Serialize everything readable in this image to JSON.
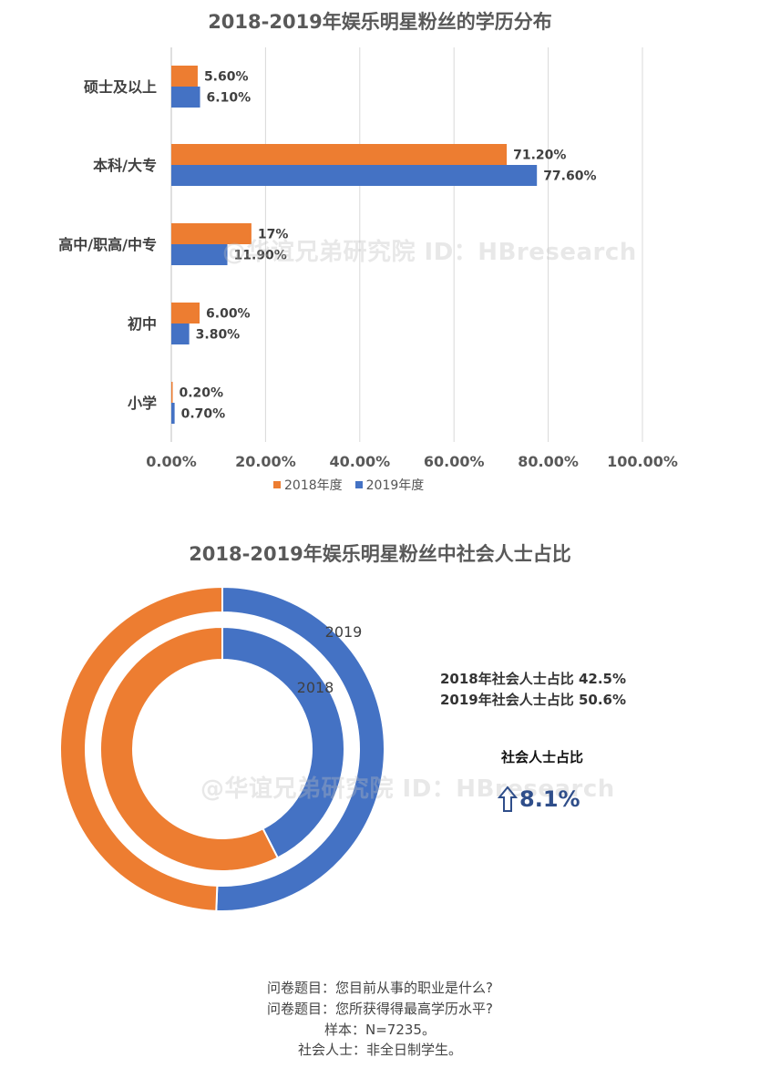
{
  "chart_data": [
    {
      "type": "bar",
      "orientation": "horizontal",
      "title": "2018-2019年娱乐明星粉丝的学历分布",
      "categories": [
        "硕士及以上",
        "本科/大专",
        "高中/职高/中专",
        "初中",
        "小学"
      ],
      "series": [
        {
          "name": "2018年度",
          "color": "#ED7D31",
          "values": [
            5.6,
            71.2,
            17,
            6.0,
            0.2
          ],
          "labels": [
            "5.60%",
            "71.20%",
            "17%",
            "6.00%",
            "0.20%"
          ]
        },
        {
          "name": "2019年度",
          "color": "#4472C4",
          "values": [
            6.1,
            77.6,
            11.9,
            3.8,
            0.7
          ],
          "labels": [
            "6.10%",
            "77.60%",
            "11.90%",
            "3.80%",
            "0.70%"
          ]
        }
      ],
      "xlim": [
        0,
        100
      ],
      "xticks": [
        0,
        20,
        40,
        60,
        80,
        100
      ],
      "xtick_labels": [
        "0.00%",
        "20.00%",
        "40.00%",
        "60.00%",
        "80.00%",
        "100.00%"
      ],
      "grid": true,
      "legend": "bottom"
    },
    {
      "type": "pie",
      "subtype": "doughnut",
      "title": "2018-2019年娱乐明星粉丝中社会人士占比",
      "rings": [
        {
          "name": "2019",
          "values": [
            50.6,
            49.4
          ],
          "colors": [
            "#4472C4",
            "#ED7D31"
          ]
        },
        {
          "name": "2018",
          "values": [
            42.5,
            57.5
          ],
          "colors": [
            "#4472C4",
            "#ED7D31"
          ]
        }
      ]
    }
  ],
  "bar_chart": {
    "title": "2018-2019年娱乐明星粉丝的学历分布",
    "legend": {
      "s1": "2018年度",
      "s2": "2019年度"
    },
    "watermark": "@华谊兄弟研究院 ID：HBresearch"
  },
  "donut_chart": {
    "title": "2018-2019年娱乐明星粉丝中社会人士占比",
    "outer_label": "2019",
    "inner_label": "2018",
    "note_2018": "2018年社会人士占比 42.5%",
    "note_2019": "2019年社会人士占比 50.6%",
    "ratio_label": "社会人士占比",
    "ratio_change": "8.1%",
    "arrow_icon": "up-arrow-icon",
    "watermark": "@华谊兄弟研究院 ID：HBresearch"
  },
  "footer": {
    "line1": "问卷题目：您目前从事的职业是什么?",
    "line2": "问卷题目：您所获得得最高学历水平?",
    "line3": "样本：N=7235。",
    "line4": "社会人士：非全日制学生。"
  },
  "colors": {
    "orange": "#ED7D31",
    "blue": "#4472C4",
    "accent": "#2f4e8a"
  }
}
